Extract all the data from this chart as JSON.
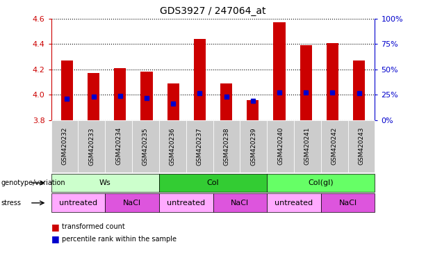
{
  "title": "GDS3927 / 247064_at",
  "samples": [
    "GSM420232",
    "GSM420233",
    "GSM420234",
    "GSM420235",
    "GSM420236",
    "GSM420237",
    "GSM420238",
    "GSM420239",
    "GSM420240",
    "GSM420241",
    "GSM420242",
    "GSM420243"
  ],
  "bar_values": [
    4.27,
    4.17,
    4.21,
    4.18,
    4.09,
    4.44,
    4.09,
    3.96,
    4.57,
    4.39,
    4.41,
    4.27
  ],
  "bar_bottom": 3.8,
  "percentile_values": [
    3.97,
    3.985,
    3.99,
    3.975,
    3.93,
    4.01,
    3.985,
    3.955,
    4.02,
    4.02,
    4.02,
    4.01
  ],
  "ylim": [
    3.8,
    4.6
  ],
  "yticks": [
    3.8,
    4.0,
    4.2,
    4.4,
    4.6
  ],
  "right_yticks": [
    0,
    25,
    50,
    75,
    100
  ],
  "bar_color": "#cc0000",
  "percentile_color": "#0000cc",
  "bar_width": 0.45,
  "genotype_groups": [
    {
      "label": "Ws",
      "start": 0,
      "end": 3,
      "color": "#ccffcc"
    },
    {
      "label": "Col",
      "start": 4,
      "end": 7,
      "color": "#33cc33"
    },
    {
      "label": "Col(gl)",
      "start": 8,
      "end": 11,
      "color": "#66ff66"
    }
  ],
  "stress_groups": [
    {
      "label": "untreated",
      "start": 0,
      "end": 1,
      "color": "#ffaaff"
    },
    {
      "label": "NaCl",
      "start": 2,
      "end": 3,
      "color": "#dd55dd"
    },
    {
      "label": "untreated",
      "start": 4,
      "end": 5,
      "color": "#ffaaff"
    },
    {
      "label": "NaCl",
      "start": 6,
      "end": 7,
      "color": "#dd55dd"
    },
    {
      "label": "untreated",
      "start": 8,
      "end": 9,
      "color": "#ffaaff"
    },
    {
      "label": "NaCl",
      "start": 10,
      "end": 11,
      "color": "#dd55dd"
    }
  ],
  "left_yaxis_color": "#cc0000",
  "right_yaxis_color": "#0000cc",
  "grid_color": "#000000",
  "background_color": "#ffffff",
  "genotype_label": "genotype/variation",
  "stress_label": "stress",
  "legend_red": "transformed count",
  "legend_blue": "percentile rank within the sample",
  "xticklabel_bg": "#cccccc"
}
